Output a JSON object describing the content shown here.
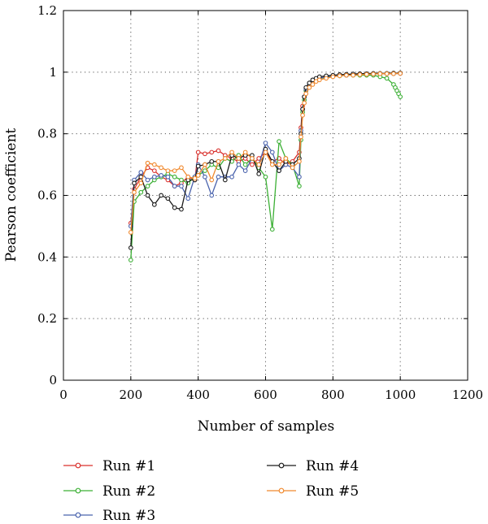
{
  "chart_data": {
    "type": "line",
    "title": "",
    "xlabel": "Number of samples",
    "ylabel": "Pearson coefficient",
    "xlim": [
      0,
      1200
    ],
    "ylim": [
      0,
      1.2
    ],
    "xticks": [
      0,
      200,
      400,
      600,
      800,
      1000,
      1200
    ],
    "yticks": [
      0,
      0.2,
      0.4,
      0.6,
      0.8,
      1,
      1.2
    ],
    "xtick_labels": [
      "0",
      "200",
      "400",
      "600",
      "800",
      "1000",
      "1200"
    ],
    "ytick_labels": [
      "0",
      "0.2",
      "0.4",
      "0.6",
      "0.8",
      "1",
      "1.2"
    ],
    "grid": true,
    "legend_position": "bottom",
    "series": [
      {
        "name": "Run #1",
        "color": "#d9302c",
        "x": [
          200,
          210,
          230,
          250,
          270,
          290,
          310,
          330,
          350,
          370,
          390,
          400,
          420,
          440,
          460,
          480,
          500,
          520,
          540,
          560,
          580,
          600,
          620,
          640,
          660,
          680,
          700,
          705,
          710,
          715,
          720,
          730,
          740,
          750,
          760,
          780,
          800,
          820,
          840,
          860,
          880,
          900,
          920,
          940,
          960,
          980,
          1000
        ],
        "y": [
          0.51,
          0.62,
          0.66,
          0.69,
          0.68,
          0.66,
          0.65,
          0.63,
          0.64,
          0.66,
          0.65,
          0.74,
          0.735,
          0.74,
          0.745,
          0.73,
          0.72,
          0.71,
          0.72,
          0.7,
          0.72,
          0.74,
          0.71,
          0.72,
          0.7,
          0.71,
          0.74,
          0.82,
          0.89,
          0.92,
          0.94,
          0.96,
          0.97,
          0.975,
          0.98,
          0.985,
          0.988,
          0.99,
          0.99,
          0.992,
          0.993,
          0.994,
          0.995,
          0.995,
          0.995,
          0.996,
          0.996
        ]
      },
      {
        "name": "Run #2",
        "color": "#3cb035",
        "x": [
          200,
          210,
          230,
          250,
          270,
          290,
          310,
          330,
          350,
          370,
          390,
          400,
          420,
          440,
          460,
          480,
          500,
          520,
          540,
          560,
          580,
          600,
          620,
          640,
          660,
          680,
          700,
          705,
          710,
          715,
          720,
          730,
          740,
          750,
          760,
          780,
          800,
          820,
          840,
          860,
          880,
          900,
          920,
          940,
          960,
          980,
          985,
          990,
          995,
          1000
        ],
        "y": [
          0.39,
          0.58,
          0.61,
          0.63,
          0.65,
          0.66,
          0.67,
          0.66,
          0.65,
          0.64,
          0.66,
          0.665,
          0.68,
          0.7,
          0.69,
          0.72,
          0.71,
          0.73,
          0.7,
          0.72,
          0.69,
          0.66,
          0.49,
          0.775,
          0.72,
          0.7,
          0.63,
          0.78,
          0.87,
          0.91,
          0.94,
          0.96,
          0.97,
          0.975,
          0.98,
          0.983,
          0.986,
          0.988,
          0.99,
          0.99,
          0.99,
          0.99,
          0.99,
          0.985,
          0.98,
          0.96,
          0.95,
          0.94,
          0.93,
          0.92
        ]
      },
      {
        "name": "Run #3",
        "color": "#4a63ad",
        "x": [
          200,
          210,
          230,
          250,
          270,
          290,
          310,
          330,
          350,
          370,
          390,
          400,
          420,
          440,
          460,
          480,
          500,
          520,
          540,
          560,
          580,
          600,
          620,
          640,
          660,
          680,
          700,
          705,
          710,
          715,
          720,
          730,
          740,
          750,
          760,
          780,
          800,
          820,
          840,
          860,
          880,
          900,
          920,
          940,
          960,
          980,
          1000
        ],
        "y": [
          0.5,
          0.65,
          0.675,
          0.65,
          0.66,
          0.665,
          0.66,
          0.63,
          0.63,
          0.59,
          0.66,
          0.7,
          0.66,
          0.6,
          0.66,
          0.66,
          0.66,
          0.7,
          0.68,
          0.72,
          0.7,
          0.77,
          0.74,
          0.68,
          0.7,
          0.69,
          0.66,
          0.81,
          0.88,
          0.92,
          0.945,
          0.96,
          0.97,
          0.975,
          0.98,
          0.985,
          0.988,
          0.99,
          0.99,
          0.992,
          0.993,
          0.994,
          0.994,
          0.995,
          0.995,
          0.995,
          0.996
        ]
      },
      {
        "name": "Run #4",
        "color": "#1a1a1a",
        "x": [
          200,
          210,
          230,
          250,
          270,
          290,
          310,
          330,
          350,
          370,
          390,
          400,
          420,
          440,
          460,
          480,
          500,
          520,
          540,
          560,
          580,
          600,
          620,
          640,
          660,
          680,
          700,
          705,
          710,
          715,
          720,
          730,
          740,
          750,
          760,
          780,
          800,
          820,
          840,
          860,
          880,
          900,
          920,
          940,
          960,
          980,
          1000
        ],
        "y": [
          0.43,
          0.64,
          0.66,
          0.6,
          0.57,
          0.6,
          0.59,
          0.56,
          0.555,
          0.65,
          0.65,
          0.695,
          0.7,
          0.71,
          0.71,
          0.65,
          0.73,
          0.72,
          0.73,
          0.73,
          0.67,
          0.75,
          0.71,
          0.68,
          0.71,
          0.7,
          0.72,
          0.8,
          0.88,
          0.92,
          0.95,
          0.965,
          0.975,
          0.98,
          0.985,
          0.988,
          0.99,
          0.992,
          0.993,
          0.994,
          0.995,
          0.995,
          0.996,
          0.996,
          0.996,
          0.997,
          0.997
        ]
      },
      {
        "name": "Run #5",
        "color": "#f0892e",
        "x": [
          200,
          210,
          230,
          250,
          270,
          290,
          310,
          330,
          350,
          370,
          390,
          400,
          420,
          440,
          460,
          480,
          500,
          520,
          540,
          560,
          580,
          600,
          620,
          640,
          660,
          680,
          700,
          705,
          710,
          715,
          720,
          730,
          740,
          750,
          760,
          780,
          800,
          820,
          840,
          860,
          880,
          900,
          920,
          940,
          960,
          980,
          1000
        ],
        "y": [
          0.48,
          0.61,
          0.64,
          0.705,
          0.7,
          0.69,
          0.68,
          0.68,
          0.69,
          0.66,
          0.655,
          0.665,
          0.7,
          0.65,
          0.71,
          0.72,
          0.74,
          0.72,
          0.74,
          0.72,
          0.7,
          0.74,
          0.7,
          0.7,
          0.72,
          0.69,
          0.71,
          0.79,
          0.86,
          0.9,
          0.93,
          0.95,
          0.96,
          0.97,
          0.975,
          0.98,
          0.985,
          0.988,
          0.99,
          0.99,
          0.992,
          0.993,
          0.994,
          0.995,
          0.995,
          0.995,
          0.996
        ]
      }
    ]
  }
}
